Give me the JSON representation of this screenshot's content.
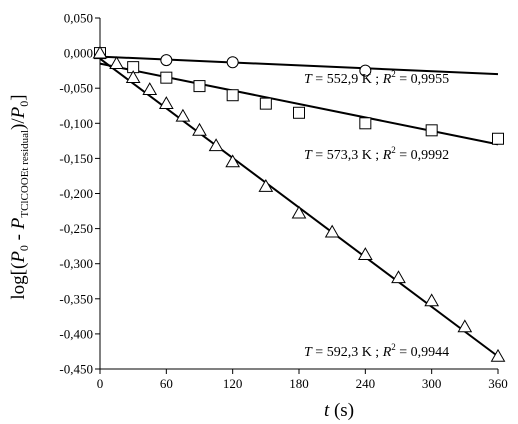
{
  "chart_data": {
    "type": "scatter",
    "xlabel": {
      "var": "t",
      "unit": " (s)"
    },
    "ylabel": {
      "prefix": "log[(",
      "p0": "P",
      "p0_sub": "0",
      "minus": " - ",
      "pt": "P",
      "pt_sub": "TClCOOEt residual",
      "close": ")/",
      "p0b": "P",
      "p0b_sub": "0",
      "end": "]"
    },
    "xlim": [
      0,
      360
    ],
    "ylim": [
      -0.45,
      0.05
    ],
    "x_ticks": [
      0,
      60,
      120,
      180,
      240,
      300,
      360
    ],
    "x_tick_labels": [
      "0",
      "60",
      "120",
      "180",
      "240",
      "300",
      "360"
    ],
    "y_ticks": [
      0.05,
      0.0,
      -0.05,
      -0.1,
      -0.15,
      -0.2,
      -0.25,
      -0.3,
      -0.35,
      -0.4,
      -0.45
    ],
    "y_tick_labels": [
      "0,050",
      "0,000",
      "-0,050",
      "-0,100",
      "-0,150",
      "-0,200",
      "-0,250",
      "-0,300",
      "-0,350",
      "-0,400",
      "-0,450"
    ],
    "grid": false,
    "series": [
      {
        "marker": "circle",
        "label": {
          "T": "T",
          "eq": " = 552,9 K ; ",
          "R": "R",
          "sup": "2",
          "r2": " = 0,9955"
        },
        "points": [
          [
            0,
            0.0
          ],
          [
            60,
            -0.01
          ],
          [
            120,
            -0.013
          ],
          [
            240,
            -0.025
          ]
        ],
        "fit": [
          [
            0,
            -0.005
          ],
          [
            360,
            -0.03
          ]
        ]
      },
      {
        "marker": "square",
        "label": {
          "T": "T",
          "eq": " = 573,3 K ; ",
          "R": "R",
          "sup": "2",
          "r2": " = 0,9992"
        },
        "points": [
          [
            0,
            0.0
          ],
          [
            30,
            -0.02
          ],
          [
            60,
            -0.035
          ],
          [
            90,
            -0.047
          ],
          [
            120,
            -0.06
          ],
          [
            150,
            -0.072
          ],
          [
            180,
            -0.085
          ],
          [
            240,
            -0.1
          ],
          [
            300,
            -0.11
          ],
          [
            360,
            -0.122
          ]
        ],
        "fit": [
          [
            0,
            -0.015
          ],
          [
            360,
            -0.13
          ]
        ]
      },
      {
        "marker": "triangle",
        "label": {
          "T": "T",
          "eq": " = 592,3 K ; ",
          "R": "R",
          "sup": "2",
          "r2": " = 0,9944"
        },
        "points": [
          [
            0,
            0.0
          ],
          [
            15,
            -0.015
          ],
          [
            30,
            -0.035
          ],
          [
            45,
            -0.052
          ],
          [
            60,
            -0.072
          ],
          [
            75,
            -0.09
          ],
          [
            90,
            -0.11
          ],
          [
            105,
            -0.132
          ],
          [
            120,
            -0.155
          ],
          [
            150,
            -0.19
          ],
          [
            180,
            -0.228
          ],
          [
            210,
            -0.255
          ],
          [
            240,
            -0.287
          ],
          [
            270,
            -0.32
          ],
          [
            300,
            -0.353
          ],
          [
            330,
            -0.39
          ],
          [
            360,
            -0.432
          ]
        ],
        "fit": [
          [
            0,
            -0.008
          ],
          [
            360,
            -0.432
          ]
        ]
      }
    ]
  }
}
